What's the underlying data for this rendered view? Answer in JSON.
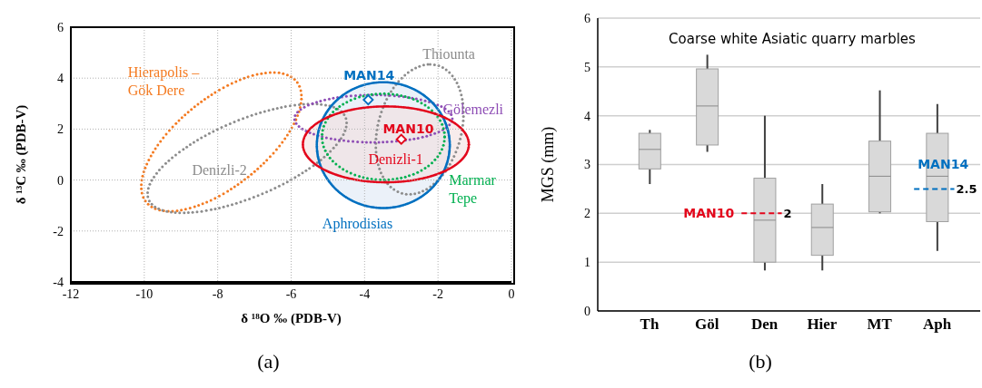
{
  "chart_data": [
    {
      "type": "scatter",
      "xlabel": "δ ¹⁸O ‰ (PDB-V)",
      "ylabel": "δ ¹³C ‰ (PDB-V)",
      "xlim": [
        -12,
        0
      ],
      "xticks": [
        -12,
        -10,
        -8,
        -6,
        -4,
        -2,
        0
      ],
      "ylim": [
        -4,
        6
      ],
      "yticks": [
        -4,
        -2,
        0,
        2,
        4,
        6
      ],
      "grid": true,
      "annotations": [
        "Hierapolis – Gök Dere",
        "Denizli-2",
        "Thiounta",
        "Gölemezli",
        "Marmar Tepe",
        "Aphrodisias",
        "Denizli-1",
        "(a)"
      ],
      "series": [
        {
          "type": "scatter",
          "name": "MAN14",
          "color": "#0070c0",
          "marker": "diamond",
          "x": [
            -3.9
          ],
          "values": [
            3.15
          ]
        },
        {
          "type": "scatter",
          "name": "MAN10",
          "color": "#e3061b",
          "marker": "diamond",
          "x": [
            -3.0
          ],
          "values": [
            1.6
          ]
        }
      ]
    },
    {
      "type": "box",
      "title": "Coarse white Asiatic quarry marbles",
      "ylabel": "MGS (mm)",
      "categories": [
        "Th",
        "Göl",
        "Den",
        "Hier",
        "MT",
        "Aph"
      ],
      "ylim": [
        0,
        6
      ],
      "yticks": [
        0,
        1,
        2,
        3,
        4,
        5,
        6
      ],
      "grid": "y",
      "color": "#d9d9d9",
      "boxes": [
        {
          "low": 2.6,
          "q1": 2.91,
          "median": 3.31,
          "q3": 3.64,
          "high": 3.71
        },
        {
          "low": 3.26,
          "q1": 3.4,
          "median": 4.2,
          "q3": 4.96,
          "high": 5.25
        },
        {
          "low": 0.83,
          "q1": 1.0,
          "median": 1.86,
          "q3": 2.72,
          "high": 4.0
        },
        {
          "low": 0.83,
          "q1": 1.14,
          "median": 1.71,
          "q3": 2.19,
          "high": 2.6
        },
        {
          "low": 2.0,
          "q1": 2.03,
          "median": 2.76,
          "q3": 3.48,
          "high": 4.52
        },
        {
          "low": 1.23,
          "q1": 1.83,
          "median": 2.76,
          "q3": 3.64,
          "high": 4.24
        }
      ],
      "ref_lines": [
        {
          "axis": "y",
          "value": 2,
          "label": "MAN10",
          "color": "#e3061b",
          "line_style": "dashed"
        },
        {
          "axis": "y",
          "value": 2.5,
          "label": "MAN14",
          "color": "#0070c0",
          "line_style": "dashed"
        }
      ],
      "annotations": [
        {
          "text": "2",
          "x": "Den",
          "y": 2
        },
        {
          "text": "2.5",
          "x": "Aph",
          "y": 2.5
        },
        "(b)"
      ]
    }
  ]
}
